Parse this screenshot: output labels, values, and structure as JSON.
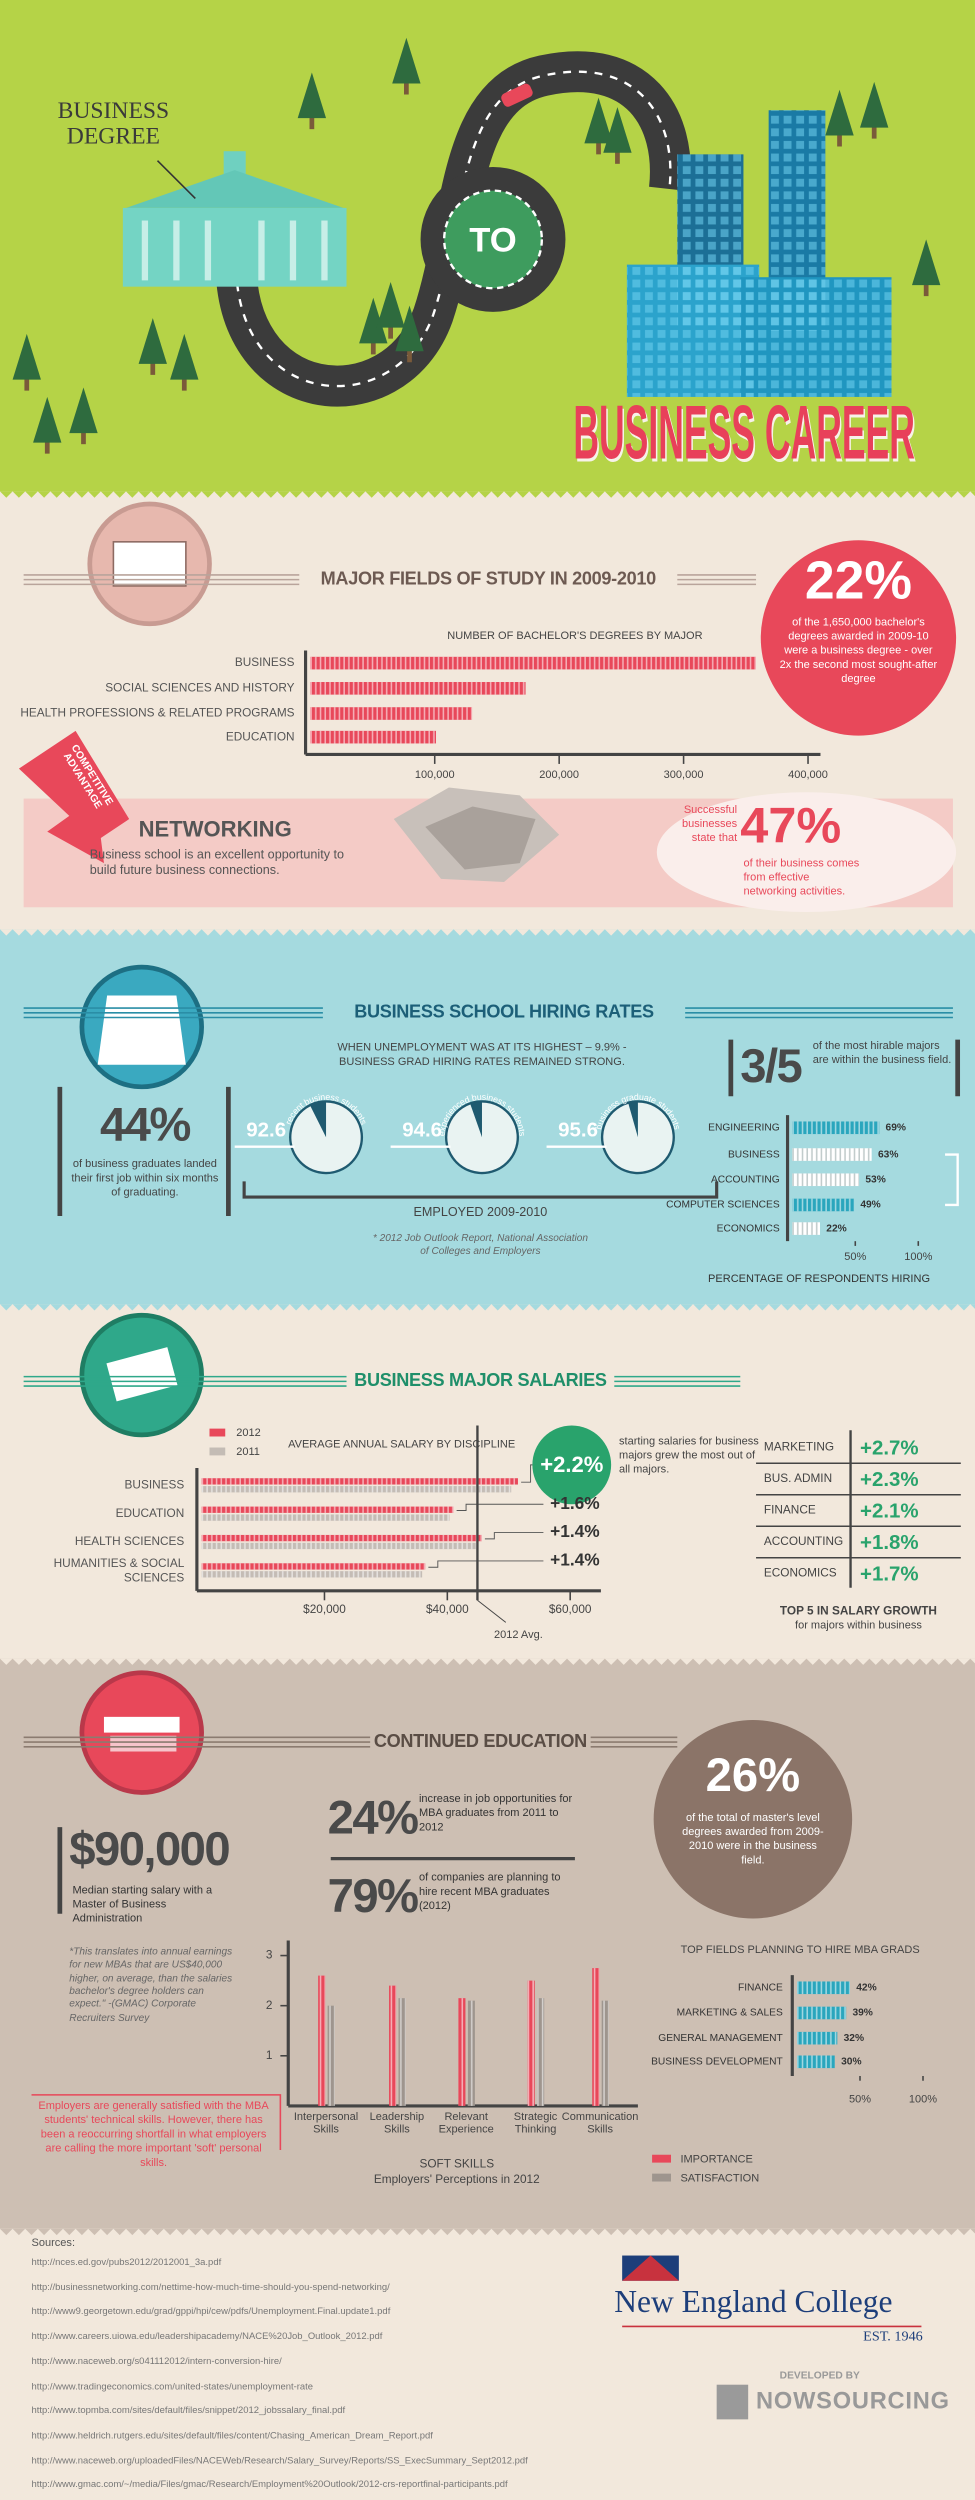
{
  "header": {
    "label_top": "BUSINESS DEGREE",
    "connector": "TO",
    "label_bottom": "BUSINESS CAREER"
  },
  "fields": {
    "title": "MAJOR FIELDS OF STUDY IN 2009-2010",
    "chart": {
      "type": "bar",
      "title": "NUMBER OF BACHELOR'S DEGREES BY MAJOR",
      "categories": [
        "BUSINESS",
        "SOCIAL SCIENCES AND HISTORY",
        "HEALTH PROFESSIONS & RELATED PROGRAMS",
        "EDUCATION"
      ],
      "values": [
        358000,
        173000,
        130000,
        101000
      ],
      "color": "#e8485a",
      "xlim": [
        0,
        410000
      ],
      "xticks": [
        {
          "value": 100000,
          "label": "100,000"
        },
        {
          "value": 200000,
          "label": "200,000"
        },
        {
          "value": 300000,
          "label": "300,000"
        },
        {
          "value": 400000,
          "label": "400,000"
        }
      ]
    },
    "stat": {
      "value": "22%",
      "text": "of the 1,650,000 bachelor's degrees awarded in 2009-10 were a business degree - over 2x the second most sought-after degree"
    }
  },
  "networking": {
    "badge": "COMPETITIVE ADVANTAGE",
    "title": "NETWORKING",
    "text": "Business school is an excellent opportunity to build future business connections.",
    "stat_lead": "Successful businesses state that",
    "stat_value": "47%",
    "stat_text": "of their business comes from effective networking activities."
  },
  "hiring": {
    "title": "BUSINESS SCHOOL HIRING RATES",
    "intro": "WHEN UNEMPLOYMENT WAS AT ITS HIGHEST – 9.9% - BUSINESS GRAD HIRING RATES REMAINED STRONG.",
    "stat_value": "44%",
    "stat_text": "of business graduates landed their first job within six months of graduating.",
    "pies": {
      "type": "pie",
      "labels": [
        "recent business students",
        "experienced business students",
        "business graduate students"
      ],
      "values": [
        92.6,
        94.6,
        95.6
      ],
      "color": "#e9f3f2",
      "caption": "EMPLOYED 2009-2010",
      "note": "* 2012 Job Outlook Report, National Association of Colleges and Employers"
    },
    "ratio_value": "3/5",
    "ratio_text": "of the most hirable majors are within the business field.",
    "chart": {
      "type": "bar",
      "categories": [
        "ENGINEERING",
        "BUSINESS",
        "ACCOUNTING",
        "COMPUTER SCIENCES",
        "ECONOMICS"
      ],
      "values": [
        69,
        63,
        53,
        49,
        22
      ],
      "value_labels": [
        "69%",
        "63%",
        "53%",
        "49%",
        "22%"
      ],
      "colors": [
        "#2aa6bd",
        "#ffffff",
        "#ffffff",
        "#2aa6bd",
        "#ffffff"
      ],
      "xlim": [
        0,
        100
      ],
      "xticks": [
        {
          "value": 50,
          "label": "50%"
        },
        {
          "value": 100,
          "label": "100%"
        }
      ],
      "xlabel": "PERCENTAGE OF RESPONDENTS HIRING"
    }
  },
  "salaries": {
    "title": "BUSINESS MAJOR SALARIES",
    "chart": {
      "type": "bar",
      "title": "AVERAGE ANNUAL SALARY BY DISCIPLINE",
      "categories": [
        "BUSINESS",
        "EDUCATION",
        "HEALTH SCIENCES",
        "HUMANITIES & SOCIAL SCIENCES"
      ],
      "series": [
        {
          "name": "2012",
          "color": "#e8485a",
          "values": [
            51500,
            41000,
            45600,
            36400
          ]
        },
        {
          "name": "2011",
          "color": "#c4bcb5",
          "values": [
            50400,
            40350,
            44970,
            35900
          ]
        }
      ],
      "growth_labels": [
        "+2.2%",
        "+1.6%",
        "+1.4%",
        "+1.4%"
      ],
      "average": 44900,
      "average_label": "2012 Avg.",
      "xlim": [
        0,
        65000
      ],
      "xticks": [
        {
          "value": 20000,
          "label": "$20,000"
        },
        {
          "value": 40000,
          "label": "$40,000"
        },
        {
          "value": 60000,
          "label": "$60,000"
        }
      ]
    },
    "note": "starting salaries for business majors grew the most out of all majors.",
    "growth_table": {
      "rows": [
        [
          "MARKETING",
          "+2.7%"
        ],
        [
          "BUS. ADMIN",
          "+2.3%"
        ],
        [
          "FINANCE",
          "+2.1%"
        ],
        [
          "ACCOUNTING",
          "+1.8%"
        ],
        [
          "ECONOMICS",
          "+1.7%"
        ]
      ],
      "title": "TOP 5 IN SALARY GROWTH",
      "subtitle": "for majors within business"
    }
  },
  "education": {
    "title": "CONTINUED EDUCATION",
    "salary_value": "$90,000",
    "salary_text": "Median starting salary with a Master of Business Administration",
    "salary_note": "*This translates into annual earnings for new MBAs that are US$40,000 higher, on average, than the salaries bachelor's degree holders can expect.\" -(GMAC) Corporate Recruiters Survey",
    "stats": [
      {
        "value": "24%",
        "text": "increase in job opportunities for MBA graduates from 2011 to 2012"
      },
      {
        "value": "79%",
        "text": "of companies are planning to hire recent MBA graduates (2012)"
      }
    ],
    "circle_value": "26%",
    "circle_text": "of the total of master's level degrees awarded from 2009-2010 were in the business field.",
    "skills": {
      "type": "bar",
      "categories": [
        "Interpersonal Skills",
        "Leadership Skills",
        "Relevant Experience",
        "Strategic Thinking",
        "Communication Skills"
      ],
      "series": [
        {
          "name": "IMPORTANCE",
          "color": "#e8485a",
          "values": [
            2.6,
            2.4,
            2.15,
            2.5,
            2.75
          ]
        },
        {
          "name": "SATISFACTION",
          "color": "#9e958e",
          "values": [
            2.0,
            2.15,
            2.1,
            2.15,
            2.1
          ]
        }
      ],
      "ylim": [
        0,
        3.3
      ],
      "yticks": [
        1,
        2,
        3
      ],
      "xlabel": "SOFT SKILLS",
      "subtitle": "Employers' Perceptions in 2012"
    },
    "skills_note": "Employers are generally satisfied with the MBA students' technical skills. However, there has been a reoccurring shortfall in what employers are calling the more important 'soft' personal skills.",
    "mba_chart": {
      "type": "bar",
      "title": "TOP FIELDS PLANNING TO HIRE MBA GRADS",
      "categories": [
        "FINANCE",
        "MARKETING & SALES",
        "GENERAL MANAGEMENT",
        "BUSINESS DEVELOPMENT"
      ],
      "values": [
        42,
        39,
        32,
        30
      ],
      "value_labels": [
        "42%",
        "39%",
        "32%",
        "30%"
      ],
      "color": "#2aa6bd",
      "xlim": [
        0,
        100
      ],
      "xticks": [
        {
          "value": 50,
          "label": "50%"
        },
        {
          "value": 100,
          "label": "100%"
        }
      ]
    }
  },
  "footer": {
    "sources_title": "Sources:",
    "sources": [
      "http://nces.ed.gov/pubs2012/2012001_3a.pdf",
      "http://businessnetworking.com/nettime-how-much-time-should-you-spend-networking/",
      "http://www9.georgetown.edu/grad/gppi/hpi/cew/pdfs/Unemployment.Final.update1.pdf",
      "http://www.careers.uiowa.edu/leadershipacademy/NACE%20Job_Outlook_2012.pdf",
      "http://www.naceweb.org/s041112012/intern-conversion-hire/",
      "http://www.tradingeconomics.com/united-states/unemployment-rate",
      "http://www.topmba.com/sites/default/files/snippet/2012_jobssalary_final.pdf",
      "http://www.heldrich.rutgers.edu/sites/default/files/content/Chasing_American_Dream_Report.pdf",
      "http://www.naceweb.org/uploadedFiles/NACEWeb/Research/Salary_Survey/Reports/SS_ExecSummary_Sept2012.pdf",
      "http://www.gmac.com/~/media/Files/gmac/Research/Employment%20Outlook/2012-crs-reportfinal-participants.pdf"
    ],
    "college": "New England College",
    "established": "EST. 1946",
    "developed_by": "DEVELOPED BY",
    "developer": "NOWSOURCING"
  }
}
